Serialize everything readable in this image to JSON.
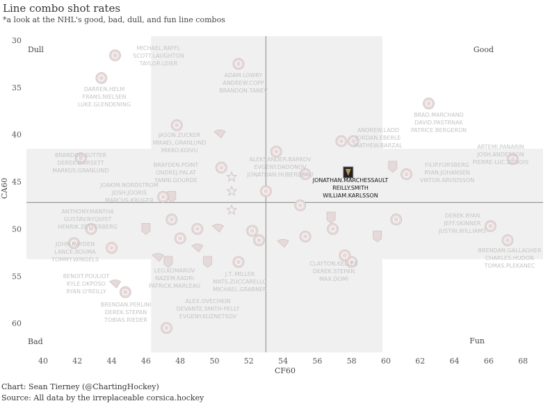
{
  "chart_data": {
    "type": "scatter",
    "title": "Line combo shot rates",
    "subtitle": "*a look at the NHL's good, bad, dull, and fun line combos",
    "xlabel": "CF60",
    "ylabel": "CA60",
    "xlim": [
      39,
      69
    ],
    "ylim": [
      30,
      63
    ],
    "y_inverted": true,
    "xticks": [
      40,
      42,
      44,
      46,
      48,
      50,
      52,
      54,
      56,
      58,
      60,
      62,
      64,
      66,
      68
    ],
    "yticks": [
      30,
      35,
      40,
      45,
      50,
      55,
      60
    ],
    "reference_lines": {
      "x": 53,
      "y": 47.2
    },
    "shaded_bands": {
      "x_range": [
        46.3,
        59.8
      ],
      "y_range": [
        41.5,
        53.2
      ]
    },
    "quadrant_labels": {
      "top_left": "Dull",
      "top_right": "Good",
      "bottom_left": "Bad",
      "bottom_right": "Fun"
    },
    "combos": [
      {
        "players": [
          "MICHAEL.RAFFL",
          "SCOTT.LAUGHTON",
          "TAYLOR.LEIER"
        ],
        "x": 44.2,
        "y": 31.6,
        "logo": "flyers"
      },
      {
        "players": [
          "ADAM.LOWRY",
          "ANDREW.COPP",
          "BRANDON.TANEV"
        ],
        "x": 51.4,
        "y": 32.5,
        "logo": "jets"
      },
      {
        "players": [
          "DARREN.HELM",
          "FRANS.NIELSEN",
          "LUKE.GLENDENING"
        ],
        "x": 43.4,
        "y": 34.0,
        "logo": "red-wings"
      },
      {
        "players": [
          "BRAD.MARCHAND",
          "DAVID.PASTRNAK",
          "PATRICE.BERGERON"
        ],
        "x": 62.5,
        "y": 36.7,
        "logo": "bruins"
      },
      {
        "players": [
          "JASON.ZUCKER",
          "MIKAEL.GRANLUND",
          "MIKKO.KOIVU"
        ],
        "x": 47.8,
        "y": 39.0,
        "logo": "wild"
      },
      {
        "players": [
          "ANDREW.LADD",
          "JORDAN.EBERLE",
          "MATHEW.BARZAL"
        ],
        "x": 57.4,
        "y": 40.7,
        "logo": "islanders"
      },
      {
        "players": [
          "BRANDON.SUTTER",
          "DEREK.DORSETT",
          "MARKUS.GRANLUND"
        ],
        "x": 42.2,
        "y": 42.5,
        "logo": "canucks"
      },
      {
        "players": [
          "ALEKSANDER.BARKOV",
          "EVGENY.DADONOV",
          "JONATHAN.HUBERDEAU"
        ],
        "x": 53.6,
        "y": 41.8,
        "logo": "panthers"
      },
      {
        "players": [
          "ARTEMI.PANARIN",
          "JOSH.ANDERSON",
          "PIERRE-LUC.DUBOIS"
        ],
        "x": 67.4,
        "y": 42.6,
        "logo": "blue-jackets"
      },
      {
        "players": [
          "BRAYDEN.POINT",
          "ONDREJ.PALAT",
          "YANNI.GOURDE"
        ],
        "x": 50.4,
        "y": 43.5,
        "logo": "lightning"
      },
      {
        "players": [
          "FILIP.FORSBERG",
          "RYAN.JOHANSEN",
          "VIKTOR.ARVIDSSON"
        ],
        "x": 61.2,
        "y": 44.2,
        "logo": "predators"
      },
      {
        "players": [
          "JONATHAN.MARCHESSAULT",
          "REILLY.SMITH",
          "WILLIAM.KARLSSON"
        ],
        "x": 57.8,
        "y": 44.0,
        "logo": "golden-knights",
        "highlight": true
      },
      {
        "players": [
          "JOAKIM.NORDSTROM",
          "JOSH.JOORIS",
          "MARCUS.KRUGER"
        ],
        "x": 47.0,
        "y": 46.6,
        "logo": "hurricanes"
      },
      {
        "players": [
          "ANTHONY.MANTHA",
          "GUSTAV.NYQUIST",
          "HENRIK.ZETTERBERG"
        ],
        "x": 42.8,
        "y": 50.0,
        "logo": "blackhawks"
      },
      {
        "players": [
          "DEREK.RYAN",
          "JEFF.SKINNER",
          "JUSTIN.WILLIAMS"
        ],
        "x": 66.1,
        "y": 49.7,
        "logo": "hurricanes"
      },
      {
        "players": [
          "JOHN.HAYDEN",
          "LANCE.BOUMA",
          "TOMMY.WINGELS"
        ],
        "x": 41.8,
        "y": 51.5,
        "logo": "blackhawks"
      },
      {
        "players": [
          "BRENDAN.GALLAGHER",
          "CHARLES.HUDON",
          "TOMAS.PLEKANEC"
        ],
        "x": 67.1,
        "y": 51.2,
        "logo": "canadiens"
      },
      {
        "players": [
          "CLAYTON.KELLER",
          "DEREK.STEPAN",
          "MAX.DOMI"
        ],
        "x": 57.6,
        "y": 52.8,
        "logo": "coyotes"
      },
      {
        "players": [
          "LEO.KOMAROV",
          "NAZEM.KADRI",
          "PATRICK.MARLEAU"
        ],
        "x": 47.3,
        "y": 53.5,
        "logo": "maple-leafs"
      },
      {
        "players": [
          "J.T..MILLER",
          "MATS.ZUCCARELLO",
          "MICHAEL.GRABNER"
        ],
        "x": 51.4,
        "y": 53.5,
        "logo": "rangers"
      },
      {
        "players": [
          "BENOIT.POULIOT",
          "KYLE.OKPOSO",
          "RYAN.O'REILLY"
        ],
        "x": 44.2,
        "y": 55.8,
        "logo": "sabres"
      },
      {
        "players": [
          "BRENDAN.PERLINI",
          "DEREK.STEPAN",
          "TOBIAS.RIEDER"
        ],
        "x": 44.8,
        "y": 56.7,
        "logo": "coyotes"
      },
      {
        "players": [
          "ALEX.OVECHKIN",
          "DEVANTE.SMITH-PELLY",
          "EVGENY.KUZNETSOV"
        ],
        "x": 47.2,
        "y": 60.5,
        "logo": "capitals"
      }
    ],
    "extra_logos": [
      {
        "x": 50.3,
        "y": 39.9,
        "logo": "blues"
      },
      {
        "x": 60.4,
        "y": 43.4,
        "logo": "maple-leafs"
      },
      {
        "x": 55.3,
        "y": 44.2,
        "logo": "blue-jackets"
      },
      {
        "x": 58.1,
        "y": 40.7,
        "logo": "capitals"
      },
      {
        "x": 51.0,
        "y": 44.5,
        "logo": "stars"
      },
      {
        "x": 51.0,
        "y": 46.0,
        "logo": "stars"
      },
      {
        "x": 47.5,
        "y": 46.6,
        "logo": "golden-knights"
      },
      {
        "x": 53.0,
        "y": 46.0,
        "logo": "canadiens"
      },
      {
        "x": 55.0,
        "y": 47.5,
        "logo": "flames"
      },
      {
        "x": 51.0,
        "y": 48.0,
        "logo": "stars"
      },
      {
        "x": 47.5,
        "y": 49.0,
        "logo": "canadiens"
      },
      {
        "x": 56.8,
        "y": 48.8,
        "logo": "kings"
      },
      {
        "x": 60.6,
        "y": 49.0,
        "logo": "oilers"
      },
      {
        "x": 46.0,
        "y": 50.0,
        "logo": "golden-knights"
      },
      {
        "x": 49.0,
        "y": 50.0,
        "logo": "jets"
      },
      {
        "x": 50.2,
        "y": 49.9,
        "logo": "sabres"
      },
      {
        "x": 52.2,
        "y": 50.2,
        "logo": "oilers"
      },
      {
        "x": 56.9,
        "y": 50.0,
        "logo": "blackhawks"
      },
      {
        "x": 55.3,
        "y": 50.8,
        "logo": "canucks"
      },
      {
        "x": 59.5,
        "y": 50.8,
        "logo": "maple-leafs"
      },
      {
        "x": 48.0,
        "y": 51.0,
        "logo": "jets"
      },
      {
        "x": 52.6,
        "y": 51.2,
        "logo": "panthers"
      },
      {
        "x": 54.0,
        "y": 51.5,
        "logo": "penguins"
      },
      {
        "x": 44.0,
        "y": 52.0,
        "logo": "red-wings"
      },
      {
        "x": 49.0,
        "y": 52.0,
        "logo": "blues"
      },
      {
        "x": 46.7,
        "y": 53.0,
        "logo": "blues"
      },
      {
        "x": 49.6,
        "y": 53.5,
        "logo": "golden-knights"
      },
      {
        "x": 58.0,
        "y": 53.5,
        "logo": "coyotes"
      }
    ]
  },
  "credits": {
    "line1": "Chart: Sean Tierney (@ChartingHockey)",
    "line2": "Source: All data by the irreplaceable corsica.hockey"
  },
  "colors": {
    "band": "#f0f0f0",
    "reference_line": "#999999",
    "label_muted": "#c4c4c4",
    "label_highlight": "#111111",
    "logo_muted": "#e6d9d9",
    "logo_highlight": "#222222"
  }
}
